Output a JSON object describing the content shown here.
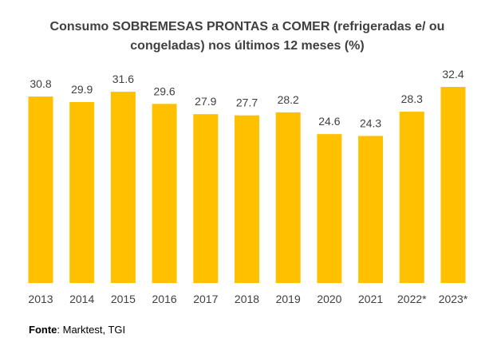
{
  "chart_data": {
    "type": "bar",
    "title": "Consumo SOBREMESAS PRONTAS a COMER (refrigeradas e/ ou congeladas) nos últimos 12 meses (%)",
    "categories": [
      "2013",
      "2014",
      "2015",
      "2016",
      "2017",
      "2018",
      "2019",
      "2020",
      "2021",
      "2022*",
      "2023*"
    ],
    "values": [
      30.8,
      29.9,
      31.6,
      29.6,
      27.9,
      27.7,
      28.2,
      24.6,
      24.3,
      28.3,
      32.4
    ],
    "value_labels": [
      "30.8",
      "29.9",
      "31.6",
      "29.6",
      "27.9",
      "27.7",
      "28.2",
      "24.6",
      "24.3",
      "28.3",
      "32.4"
    ],
    "xlabel": "",
    "ylabel": "",
    "ylim": [
      0,
      32.4
    ],
    "grid": false,
    "bar_color": "#FFC000"
  },
  "source": {
    "label": "Fonte",
    "text": ": Marktest, TGI"
  }
}
